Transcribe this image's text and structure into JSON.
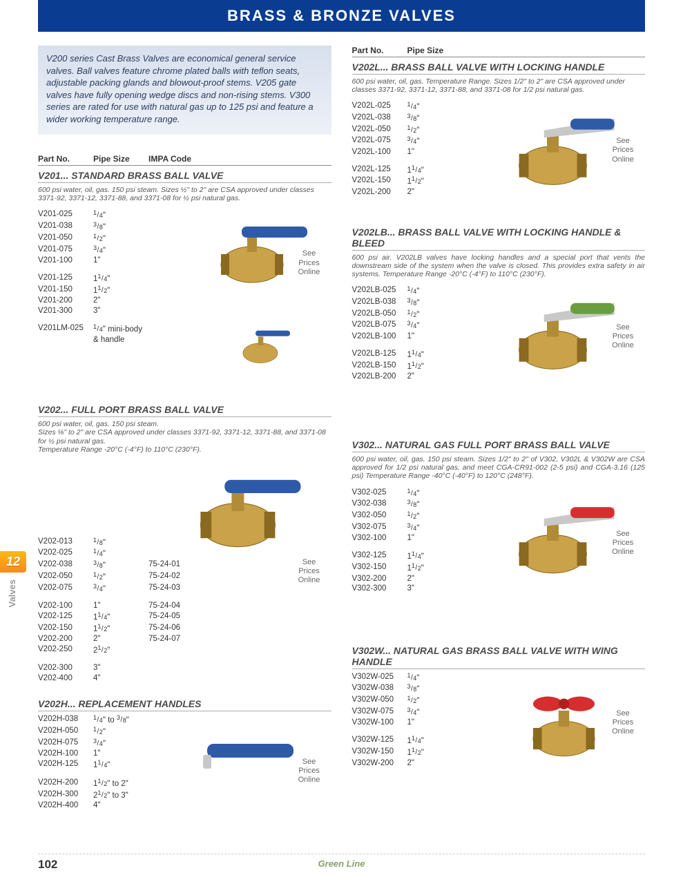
{
  "header": "BRASS & BRONZE VALVES",
  "intro": "V200 series Cast Brass Valves are economical general service valves. Ball valves feature chrome plated balls with teflon seats, adjustable packing glands and blowout-proof stems. V205 gate valves have fully opening wedge discs and non-rising stems. V300 series are rated for use with natural gas up to 125 psi and feature a wider working temperature range.",
  "colhdr": {
    "part": "Part No.",
    "size": "Pipe Size",
    "impa": "IMPA Code"
  },
  "price_note": "See Prices Online",
  "side": {
    "num": "12",
    "label": "Valves"
  },
  "footer_brand": "Green Line",
  "page_no": "102",
  "sections": {
    "v201": {
      "title": "V201... STANDARD BRASS BALL VALVE",
      "desc": "600 psi water, oil, gas. 150 psi steam. Sizes ½\" to 2\" are CSA approved under classes 3371-92, 3371-12, 3371-88, and 3371-08 for ½ psi natural gas.",
      "rows1": [
        {
          "p": "V201-025",
          "s": "¼\""
        },
        {
          "p": "V201-038",
          "s": "⅜\""
        },
        {
          "p": "V201-050",
          "s": "½\""
        },
        {
          "p": "V201-075",
          "s": "¾\""
        },
        {
          "p": "V201-100",
          "s": "1\""
        }
      ],
      "rows2": [
        {
          "p": "V201-125",
          "s": "1¼\""
        },
        {
          "p": "V201-150",
          "s": "1½\""
        },
        {
          "p": "V201-200",
          "s": "2\""
        },
        {
          "p": "V201-300",
          "s": "3\""
        }
      ],
      "rows3": [
        {
          "p": "V201LM-025",
          "s": "¼\" mini-body & handle"
        }
      ]
    },
    "v202": {
      "title": "V202... FULL PORT BRASS BALL VALVE",
      "desc": "600 psi water, oil, gas. 150 psi steam.\nSizes ⅛\" to 2\" are CSA approved under classes 3371-92, 3371-12, 3371-88, and 3371-08 for ½ psi natural gas.\nTemperature Range -20°C (-4°F) to 110°C (230°F).",
      "rows1": [
        {
          "p": "V202-013",
          "s": "⅛\"",
          "i": ""
        },
        {
          "p": "V202-025",
          "s": "¼\"",
          "i": ""
        },
        {
          "p": "V202-038",
          "s": "⅜\"",
          "i": "75-24-01"
        },
        {
          "p": "V202-050",
          "s": "½\"",
          "i": "75-24-02"
        },
        {
          "p": "V202-075",
          "s": "¾\"",
          "i": "75-24-03"
        }
      ],
      "rows2": [
        {
          "p": "V202-100",
          "s": "1\"",
          "i": "75-24-04"
        },
        {
          "p": "V202-125",
          "s": "1¼\"",
          "i": "75-24-05"
        },
        {
          "p": "V202-150",
          "s": "1½\"",
          "i": "75-24-06"
        },
        {
          "p": "V202-200",
          "s": "2\"",
          "i": "75-24-07"
        },
        {
          "p": "V202-250",
          "s": "2½\"",
          "i": ""
        }
      ],
      "rows3": [
        {
          "p": "V202-300",
          "s": "3\"",
          "i": ""
        },
        {
          "p": "V202-400",
          "s": "4\"",
          "i": ""
        }
      ]
    },
    "v202h": {
      "title": "V202H... REPLACEMENT HANDLES",
      "rows1": [
        {
          "p": "V202H-038",
          "s": "¼\" to ⅜\""
        },
        {
          "p": "V202H-050",
          "s": "½\""
        },
        {
          "p": "V202H-075",
          "s": "¾\""
        },
        {
          "p": "V202H-100",
          "s": "1\""
        },
        {
          "p": "V202H-125",
          "s": "1¼\""
        }
      ],
      "rows2": [
        {
          "p": "V202H-200",
          "s": "1½\" to 2\""
        },
        {
          "p": "V202H-300",
          "s": "2½\" to 3\""
        },
        {
          "p": "V202H-400",
          "s": "4\""
        }
      ]
    },
    "v202l": {
      "title": "V202L... BRASS BALL VALVE WITH LOCKING HANDLE",
      "desc": "600 psi water, oil, gas. Temperature Range. Sizes 1/2\" to 2\" are CSA approved under classes 3371-92, 3371-12, 3371-88, and 3371-08 for 1/2 psi natural gas.",
      "rows1": [
        {
          "p": "V202L-025",
          "s": "¼\""
        },
        {
          "p": "V202L-038",
          "s": "⅜\""
        },
        {
          "p": "V202L-050",
          "s": "½\""
        },
        {
          "p": "V202L-075",
          "s": "¾\""
        },
        {
          "p": "V202L-100",
          "s": "1\""
        }
      ],
      "rows2": [
        {
          "p": "V202L-125",
          "s": "1¼\""
        },
        {
          "p": "V202L-150",
          "s": "1½\""
        },
        {
          "p": "V202L-200",
          "s": "2\""
        }
      ]
    },
    "v202lb": {
      "title": "V202LB... BRASS BALL VALVE WITH LOCKING HANDLE & BLEED",
      "desc": "600 psi air. V202LB valves have locking handles and a special port that vents the downstream side of the system when the valve is closed.  This provides extra safety in air systems. Temperature Range -20°C (-4°F) to 110°C (230°F).",
      "rows1": [
        {
          "p": "V202LB-025",
          "s": "¼\""
        },
        {
          "p": "V202LB-038",
          "s": "⅜\""
        },
        {
          "p": "V202LB-050",
          "s": "½\""
        },
        {
          "p": "V202LB-075",
          "s": "¾\""
        },
        {
          "p": "V202LB-100",
          "s": "1\""
        }
      ],
      "rows2": [
        {
          "p": "V202LB-125",
          "s": "1¼\""
        },
        {
          "p": "V202LB-150",
          "s": "1½\""
        },
        {
          "p": "V202LB-200",
          "s": "2\""
        }
      ]
    },
    "v302": {
      "title": "V302... NATURAL GAS FULL PORT BRASS BALL VALVE",
      "desc": "600 psi water, oil, gas. 150 psi steam. Sizes 1/2\" to 2\" of V302, V302L & V302W are CSA approved for 1/2 psi natural gas, and meet CGA-CR91-002 (2-5 psi) and CGA-3.16 (125 psi) Temperature Range -40°C (-40°F) to 120°C (248°F).",
      "rows1": [
        {
          "p": "V302-025",
          "s": "¼\""
        },
        {
          "p": "V302-038",
          "s": "⅜\""
        },
        {
          "p": "V302-050",
          "s": "½\""
        },
        {
          "p": "V302-075",
          "s": "¾\""
        },
        {
          "p": "V302-100",
          "s": "1\""
        }
      ],
      "rows2": [
        {
          "p": "V302-125",
          "s": "1¼\""
        },
        {
          "p": "V302-150",
          "s": "1½\""
        },
        {
          "p": "V302-200",
          "s": "2\""
        },
        {
          "p": "V302-300",
          "s": "3\""
        }
      ]
    },
    "v302w": {
      "title": "V302W... NATURAL GAS BRASS BALL VALVE WITH WING HANDLE",
      "rows1": [
        {
          "p": "V302W-025",
          "s": "¼\""
        },
        {
          "p": "V302W-038",
          "s": "⅜\""
        },
        {
          "p": "V302W-050",
          "s": "½\""
        },
        {
          "p": "V302W-075",
          "s": "¾\""
        },
        {
          "p": "V302W-100",
          "s": "1\""
        }
      ],
      "rows2": [
        {
          "p": "V302W-125",
          "s": "1¼\""
        },
        {
          "p": "V302W-150",
          "s": "1½\""
        },
        {
          "p": "V302W-200",
          "s": "2\""
        }
      ]
    }
  },
  "valve_colors": {
    "brass": "#c9a24a",
    "brass_dark": "#8a6a20",
    "handle_blue": "#2e5aa8",
    "handle_red": "#d62e2e",
    "chrome": "#c8c8c8"
  }
}
